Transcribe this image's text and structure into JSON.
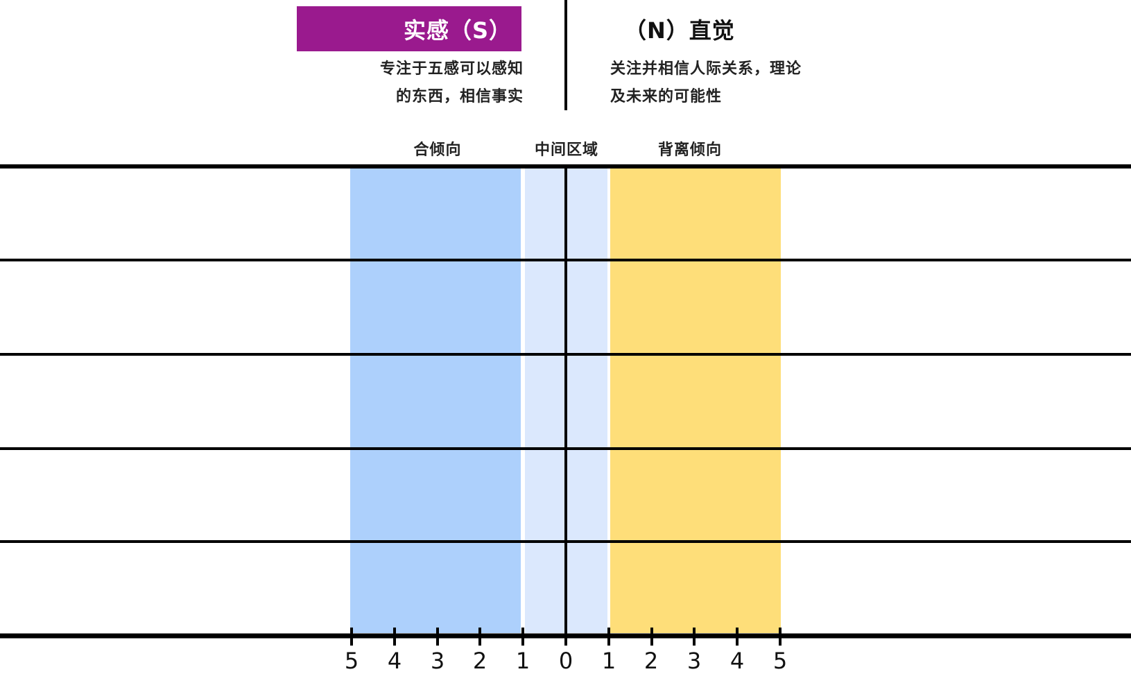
{
  "sensing": {
    "title": "实感（S）",
    "description_lines": [
      "专注于五感可以感知",
      "的东西，相信事实"
    ]
  },
  "intuition": {
    "title": "（N）直觉",
    "description_lines": [
      "关注并相信人际关系，理论",
      "及未来的可能性"
    ]
  },
  "zones": {
    "agree_label": "合倾向",
    "middle_label": "中间区域",
    "diverge_label": "背离倾向"
  },
  "scale": {
    "tick_labels": [
      "5",
      "4",
      "3",
      "2",
      "1",
      "0",
      "1",
      "2",
      "3",
      "4",
      "5"
    ]
  },
  "colors": {
    "sensing_accent": "#9A1A8E",
    "agree_zone": "#ADD0FC",
    "middle_zone": "#DBE8FD",
    "diverge_zone": "#FEDE79",
    "lines": "#000000"
  }
}
